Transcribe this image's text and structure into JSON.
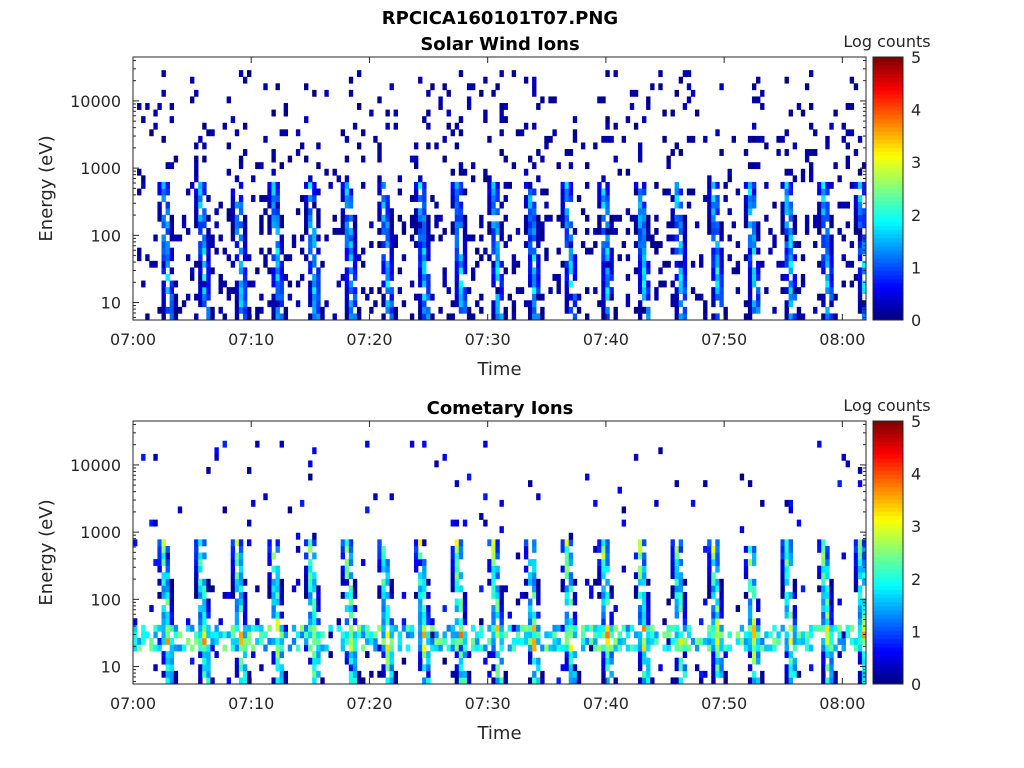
{
  "figure_title": "RPCICA160101T07.PNG",
  "colormap": [
    "#00007f",
    "#0000ff",
    "#007fff",
    "#00ffff",
    "#7fff7f",
    "#ffff00",
    "#ff7f00",
    "#ff0000",
    "#7f0000"
  ],
  "chart_data": [
    {
      "type": "heatmap",
      "title": "Solar Wind Ions",
      "xlabel": "Time",
      "ylabel": "Energy (eV)",
      "x_ticks": [
        "07:00",
        "07:10",
        "07:20",
        "07:30",
        "07:40",
        "07:50",
        "08:00"
      ],
      "x_range": [
        "07:00",
        "08:02"
      ],
      "y_scale": "log",
      "y_ticks": [
        "10",
        "100",
        "1000",
        "10000"
      ],
      "y_range": [
        5.5,
        45000
      ],
      "colorbar": {
        "label": "Log counts",
        "range": [
          0,
          5
        ],
        "ticks": [
          "0",
          "1",
          "2",
          "3",
          "4",
          "5"
        ]
      },
      "burst_period_min": 3.1,
      "first_burst_min": 2.8,
      "burst_max_energy_eV": 650,
      "burst_peak_log_counts": 2.0,
      "background_max_energy_eV": 30000,
      "background_log_counts": 0.3
    },
    {
      "type": "heatmap",
      "title": "Cometary Ions",
      "xlabel": "Time",
      "ylabel": "Energy (eV)",
      "x_ticks": [
        "07:00",
        "07:10",
        "07:20",
        "07:30",
        "07:40",
        "07:50",
        "08:00"
      ],
      "x_range": [
        "07:00",
        "08:02"
      ],
      "y_scale": "log",
      "y_ticks": [
        "10",
        "100",
        "1000",
        "10000"
      ],
      "y_range": [
        5.5,
        45000
      ],
      "colorbar": {
        "label": "Log counts",
        "range": [
          0,
          5
        ],
        "ticks": [
          "0",
          "1",
          "2",
          "3",
          "4",
          "5"
        ]
      },
      "burst_period_min": 3.1,
      "first_burst_min": 2.8,
      "burst_max_energy_eV": 700,
      "burst_peak_log_counts": 3.0,
      "band_energy_eV": [
        18,
        45
      ],
      "background_max_energy_eV": 25000,
      "background_log_counts": 0.8
    }
  ]
}
